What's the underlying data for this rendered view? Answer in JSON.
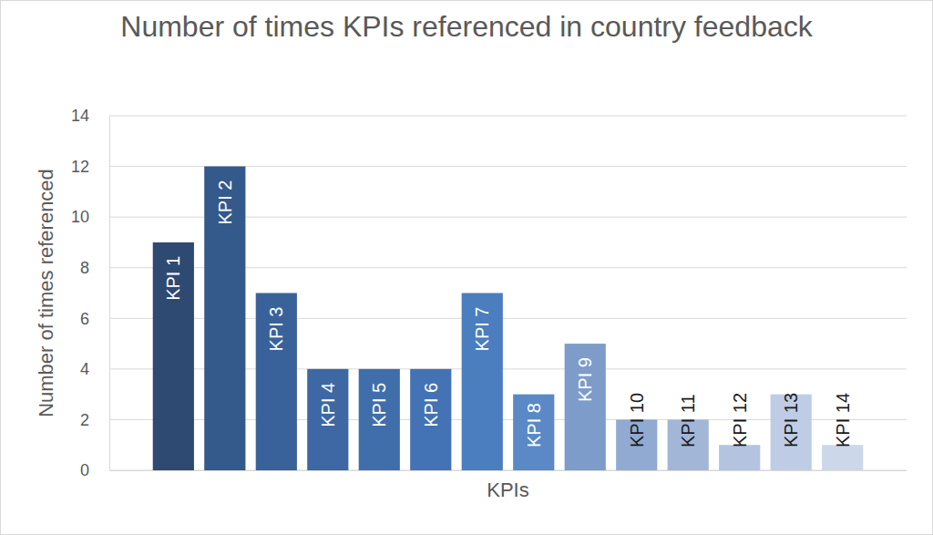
{
  "chart_data": {
    "type": "bar",
    "title": "Number of times KPIs referenced in country feedback",
    "x_label": "KPIs",
    "y_label": "Number of times referenced",
    "categories": [
      "KPI 1",
      "KPI 2",
      "KPI 3",
      "KPI 4",
      "KPI 5",
      "KPI 6",
      "KPI 7",
      "KPI 8",
      "KPI 9",
      "KPI 10",
      "KPI 11",
      "KPI 12",
      "KPI 13",
      "KPI 14"
    ],
    "values": [
      9,
      12,
      7,
      4,
      4,
      4,
      7,
      3,
      5,
      2,
      2,
      1,
      3,
      1
    ],
    "colors": [
      "#2e4a72",
      "#34598b",
      "#3a629a",
      "#3d68a3",
      "#406eab",
      "#4373b4",
      "#4a7ebf",
      "#5a89c6",
      "#7d9cc9",
      "#91aad2",
      "#a2b6d8",
      "#b3c3e0",
      "#bfcce5",
      "#cdd7ea"
    ],
    "ylim": [
      0,
      14
    ],
    "yticks": [
      0,
      2,
      4,
      6,
      8,
      10,
      12,
      14
    ],
    "grid": true
  }
}
